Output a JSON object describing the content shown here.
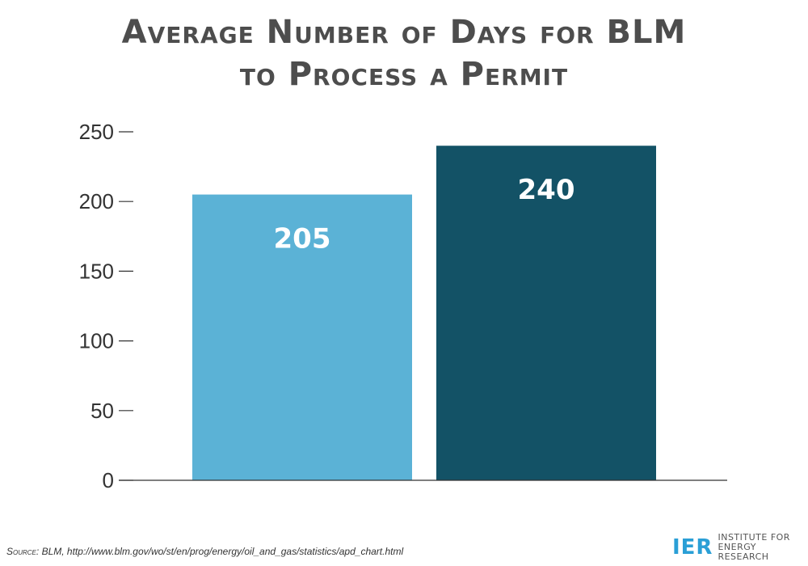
{
  "chart_data": {
    "type": "bar",
    "title_lines": [
      "Average Number of Days for BLM",
      "to Process a Permit"
    ],
    "categories": [
      "",
      ""
    ],
    "values": [
      205,
      240
    ],
    "value_labels": [
      "205",
      "240"
    ],
    "bar_colors": [
      "#5bb2d6",
      "#135266"
    ],
    "xlabel": "",
    "ylabel": "",
    "ylim": [
      0,
      250
    ],
    "yticks": [
      0,
      50,
      100,
      150,
      200,
      250
    ],
    "ytick_labels": [
      "0",
      "50",
      "100",
      "150",
      "200",
      "250"
    ],
    "grid": false,
    "legend": "none"
  },
  "footer": {
    "source_lead": "Source:",
    "source_text": "BLM, http://www.blm.gov/wo/st/en/prog/energy/oil_and_gas/statistics/apd_chart.html"
  },
  "logo": {
    "mark": "IER",
    "line1": "INSTITUTE FOR",
    "line2": "ENERGY RESEARCH",
    "color": "#2a9fd6"
  },
  "colors": {
    "title": "#4d4d4d",
    "axis": "#333333"
  }
}
